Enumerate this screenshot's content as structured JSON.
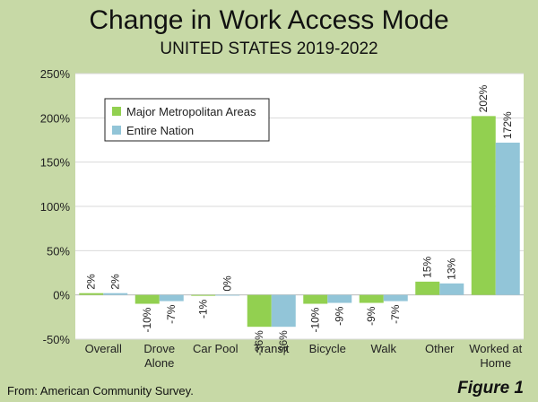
{
  "title": "Change in Work Access Mode",
  "subtitle": "UNITED STATES 2019-2022",
  "source": "From: American Community Survey.",
  "figure_label": "Figure 1",
  "colors": {
    "metro": "#92d050",
    "nation": "#92c5d8",
    "background": "#c7d9a6",
    "plot": "#ffffff"
  },
  "chart_data": {
    "type": "bar",
    "categories": [
      "Overall",
      "Drove\nAlone",
      "Car Pool",
      "Transit",
      "Bicycle",
      "Walk",
      "Other",
      "Worked at\nHome"
    ],
    "series": [
      {
        "name": "Major Metropolitan Areas",
        "values": [
          2,
          -10,
          -1,
          -36,
          -10,
          -9,
          15,
          202
        ],
        "labels": [
          "2%",
          "-10%",
          "-1%",
          "-36%",
          "-10%",
          "-9%",
          "15%",
          "202%"
        ]
      },
      {
        "name": "Entire Nation",
        "values": [
          2,
          -7,
          0,
          -36,
          -9,
          -7,
          13,
          172
        ],
        "labels": [
          "2%",
          "-7%",
          "0%",
          "-36%",
          "-9%",
          "-7%",
          "13%",
          "172%"
        ]
      }
    ],
    "ylim": [
      -50,
      250
    ],
    "yticks": [
      -50,
      0,
      50,
      100,
      150,
      200,
      250
    ],
    "ytick_labels": [
      "-50%",
      "0%",
      "50%",
      "100%",
      "150%",
      "200%",
      "250%"
    ],
    "grid": true,
    "legend_position": "top-left"
  }
}
